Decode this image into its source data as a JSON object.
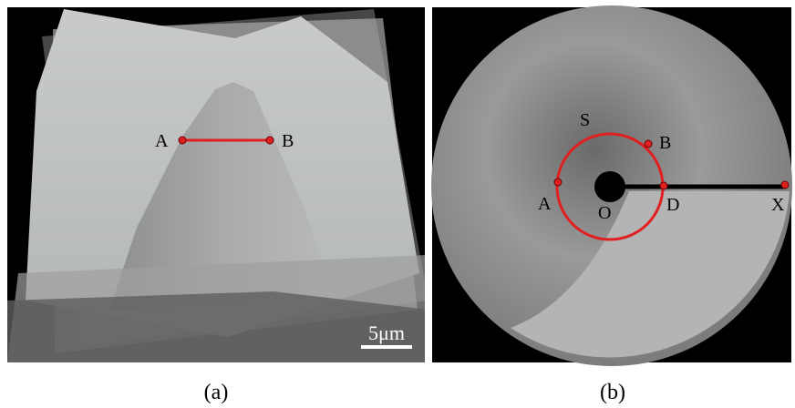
{
  "panel_a": {
    "points": [
      "A",
      "B"
    ],
    "scale_bar": "5μm",
    "caption": "(a)"
  },
  "panel_b": {
    "points": [
      "S",
      "B",
      "A",
      "O",
      "D",
      "X"
    ],
    "caption": "(b)"
  }
}
